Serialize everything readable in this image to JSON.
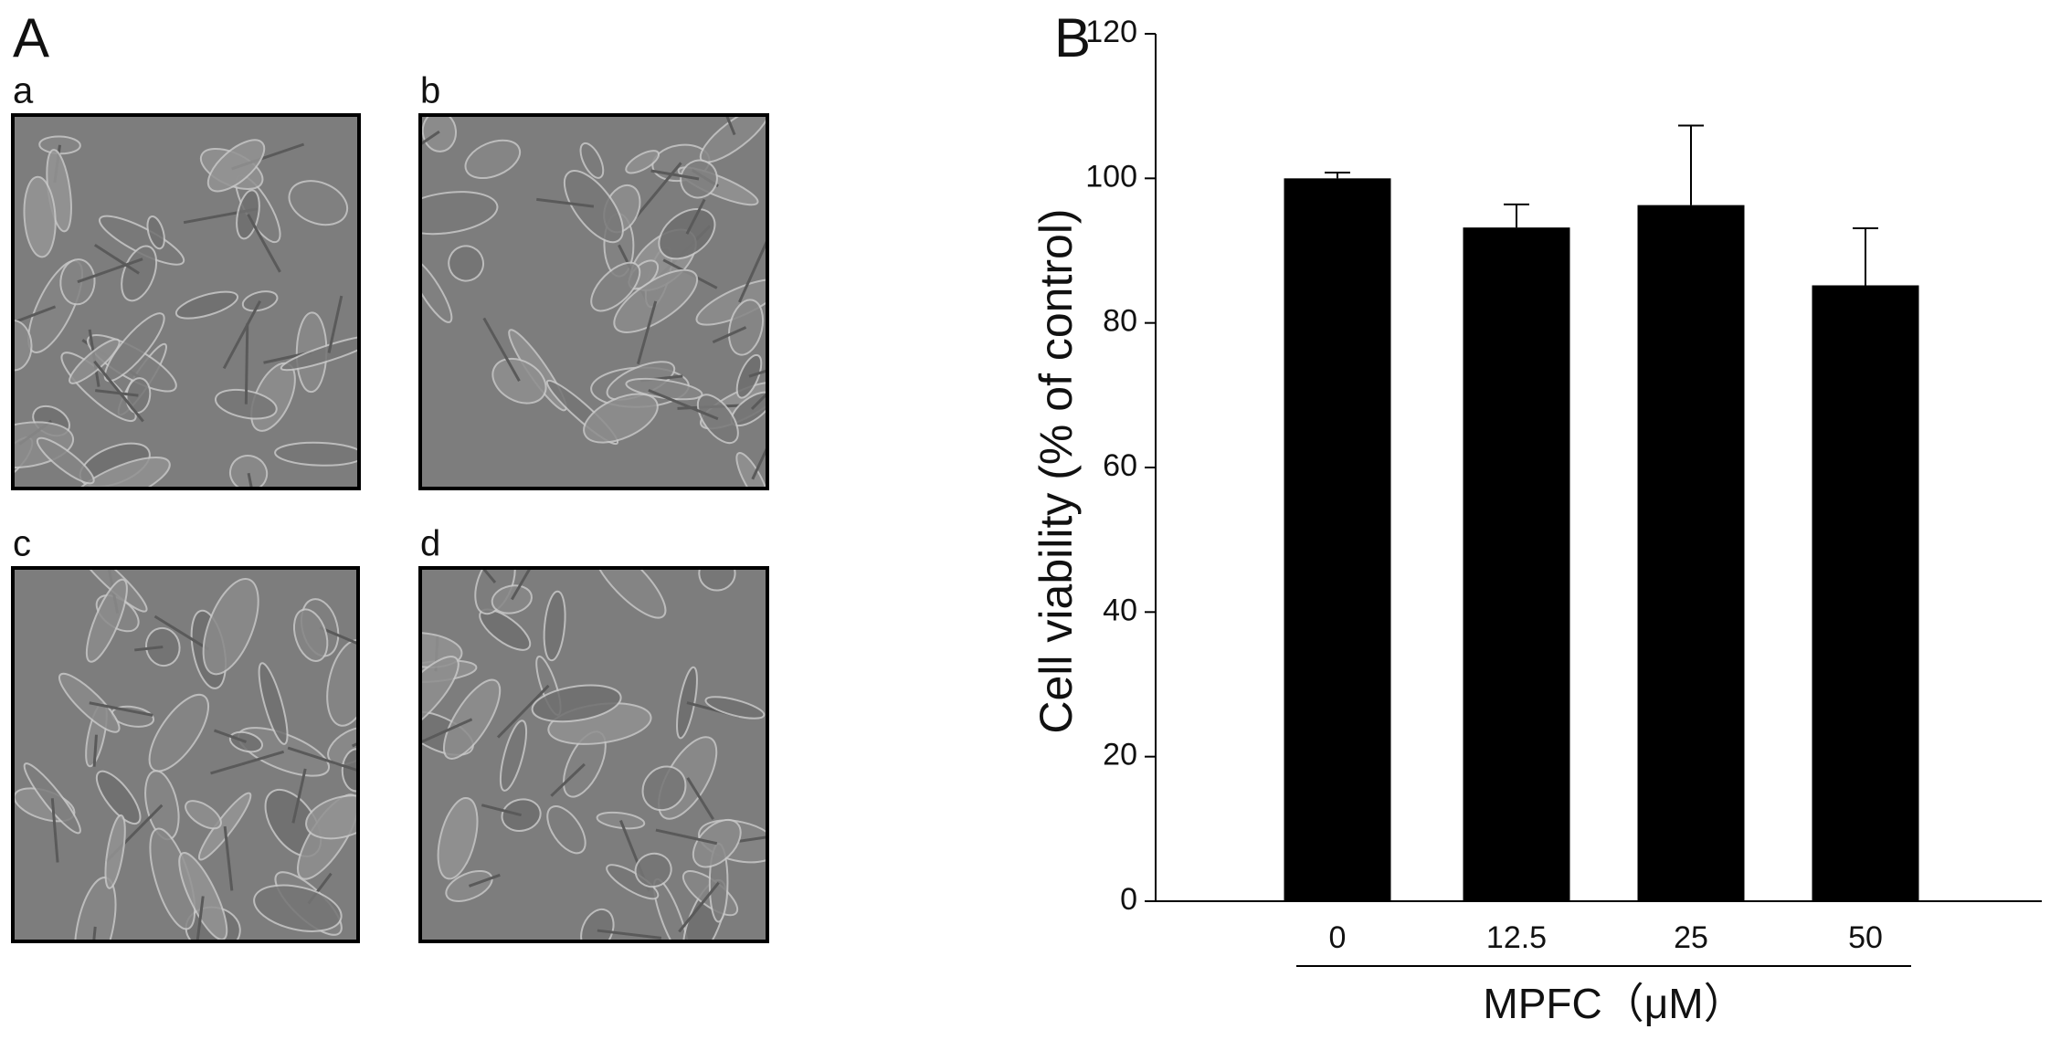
{
  "panel_a": {
    "label": "A",
    "images": [
      {
        "label": "a"
      },
      {
        "label": "b"
      },
      {
        "label": "c"
      },
      {
        "label": "d"
      }
    ]
  },
  "chart_data": {
    "type": "bar",
    "panel_label": "B",
    "y_label": "Cell viability  (% of control)",
    "x_label": "MPFC（μM）",
    "categories": [
      "0",
      "12.5",
      "25",
      "50"
    ],
    "values": [
      100,
      93.2,
      96.3,
      85.2
    ],
    "errors": [
      0.8,
      3.2,
      11,
      7.9
    ],
    "color": "#000000",
    "ylim": [
      0,
      120
    ],
    "yticks": [
      0,
      20,
      40,
      60,
      80,
      100,
      120
    ],
    "grid": false
  }
}
